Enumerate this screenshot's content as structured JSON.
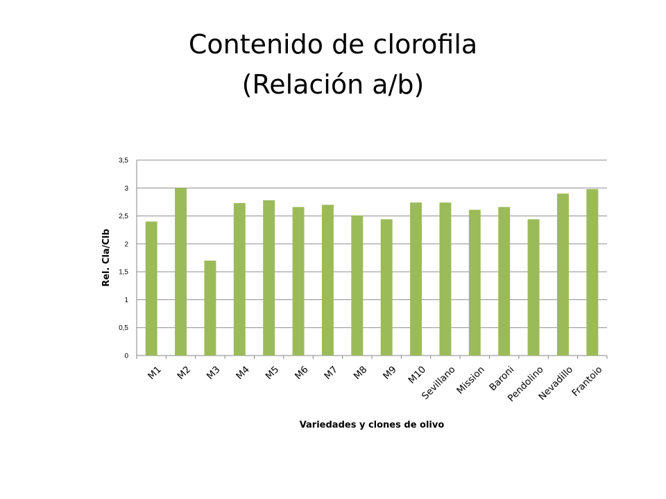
{
  "slide": {
    "title_line1": "Contenido de clorofila",
    "title_line2": "(Relación a/b)"
  },
  "chart_data": {
    "type": "bar",
    "xlabel": "Variedades y clones de olivo",
    "ylabel": "Rel. Cla/Clb",
    "ylim": [
      0,
      3.5
    ],
    "yticks": [
      "0",
      "0,5",
      "1",
      "1,5",
      "2",
      "2,5",
      "3",
      "3,5"
    ],
    "grid": true,
    "bar_color": "#9BBB59",
    "categories": [
      "M1",
      "M2",
      "M3",
      "M4",
      "M5",
      "M6",
      "M7",
      "M8",
      "M9",
      "M10",
      "Sevillano",
      "Mission",
      "Baroni",
      "Pendolino",
      "Nevadillo",
      "Frantoio"
    ],
    "values": [
      2.4,
      3.0,
      1.7,
      2.73,
      2.78,
      2.66,
      2.7,
      2.51,
      2.44,
      2.74,
      2.74,
      2.61,
      2.66,
      2.44,
      2.9,
      2.98
    ]
  }
}
